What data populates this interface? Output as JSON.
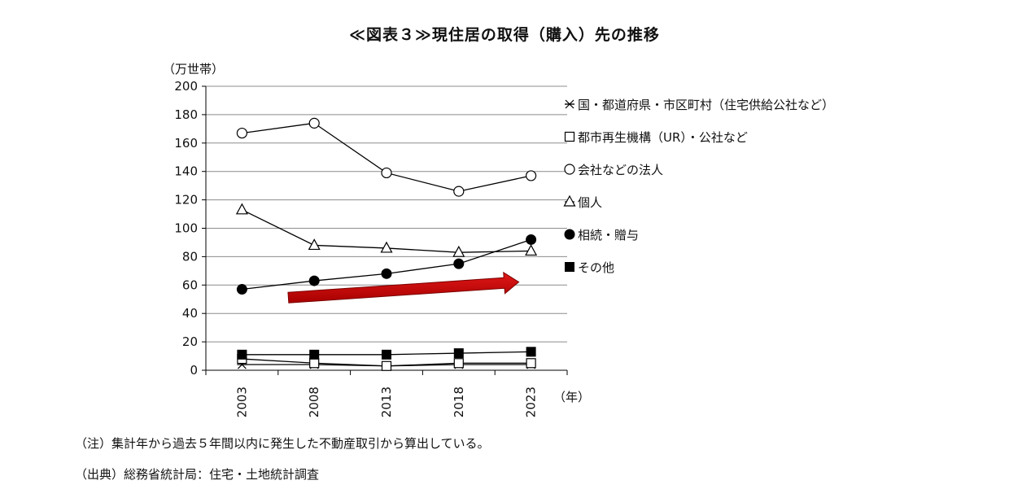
{
  "chart_data": {
    "type": "line",
    "title": "≪図表３≫現住居の取得（購入）先の推移",
    "ylabel": "（万世帯）",
    "xlabel": "（年）",
    "ylim": [
      0,
      200
    ],
    "yticks": [
      0,
      20,
      40,
      60,
      80,
      100,
      120,
      140,
      160,
      180,
      200
    ],
    "categories": [
      "2003",
      "2008",
      "2013",
      "2018",
      "2023"
    ],
    "grid": "horizontal",
    "legend_position": "right",
    "series": [
      {
        "name": "国・都道府県・市区町村（住宅供給公社など）",
        "marker": "asterisk",
        "values": [
          4,
          4,
          3,
          4,
          4
        ]
      },
      {
        "name": "都市再生機構（UR）・公社など",
        "marker": "open-square",
        "values": [
          8,
          5,
          3,
          5,
          5
        ]
      },
      {
        "name": "会社などの法人",
        "marker": "open-circle",
        "values": [
          167,
          174,
          139,
          126,
          137
        ]
      },
      {
        "name": "個人",
        "marker": "open-triangle",
        "values": [
          113,
          88,
          86,
          83,
          84
        ]
      },
      {
        "name": "相続・贈与",
        "marker": "filled-circle",
        "values": [
          57,
          63,
          68,
          75,
          92
        ]
      },
      {
        "name": "その他",
        "marker": "filled-square",
        "values": [
          11,
          11,
          11,
          12,
          13
        ]
      }
    ],
    "annotation": {
      "type": "arrow",
      "color": "#c00000",
      "from": [
        "2003",
        50
      ],
      "to": [
        "2023",
        65
      ]
    }
  },
  "notes": {
    "note": "（注）集計年から過去５年間以内に発生した不動産取引から算出している。",
    "source": "（出典）総務省統計局：住宅・土地統計調査"
  }
}
